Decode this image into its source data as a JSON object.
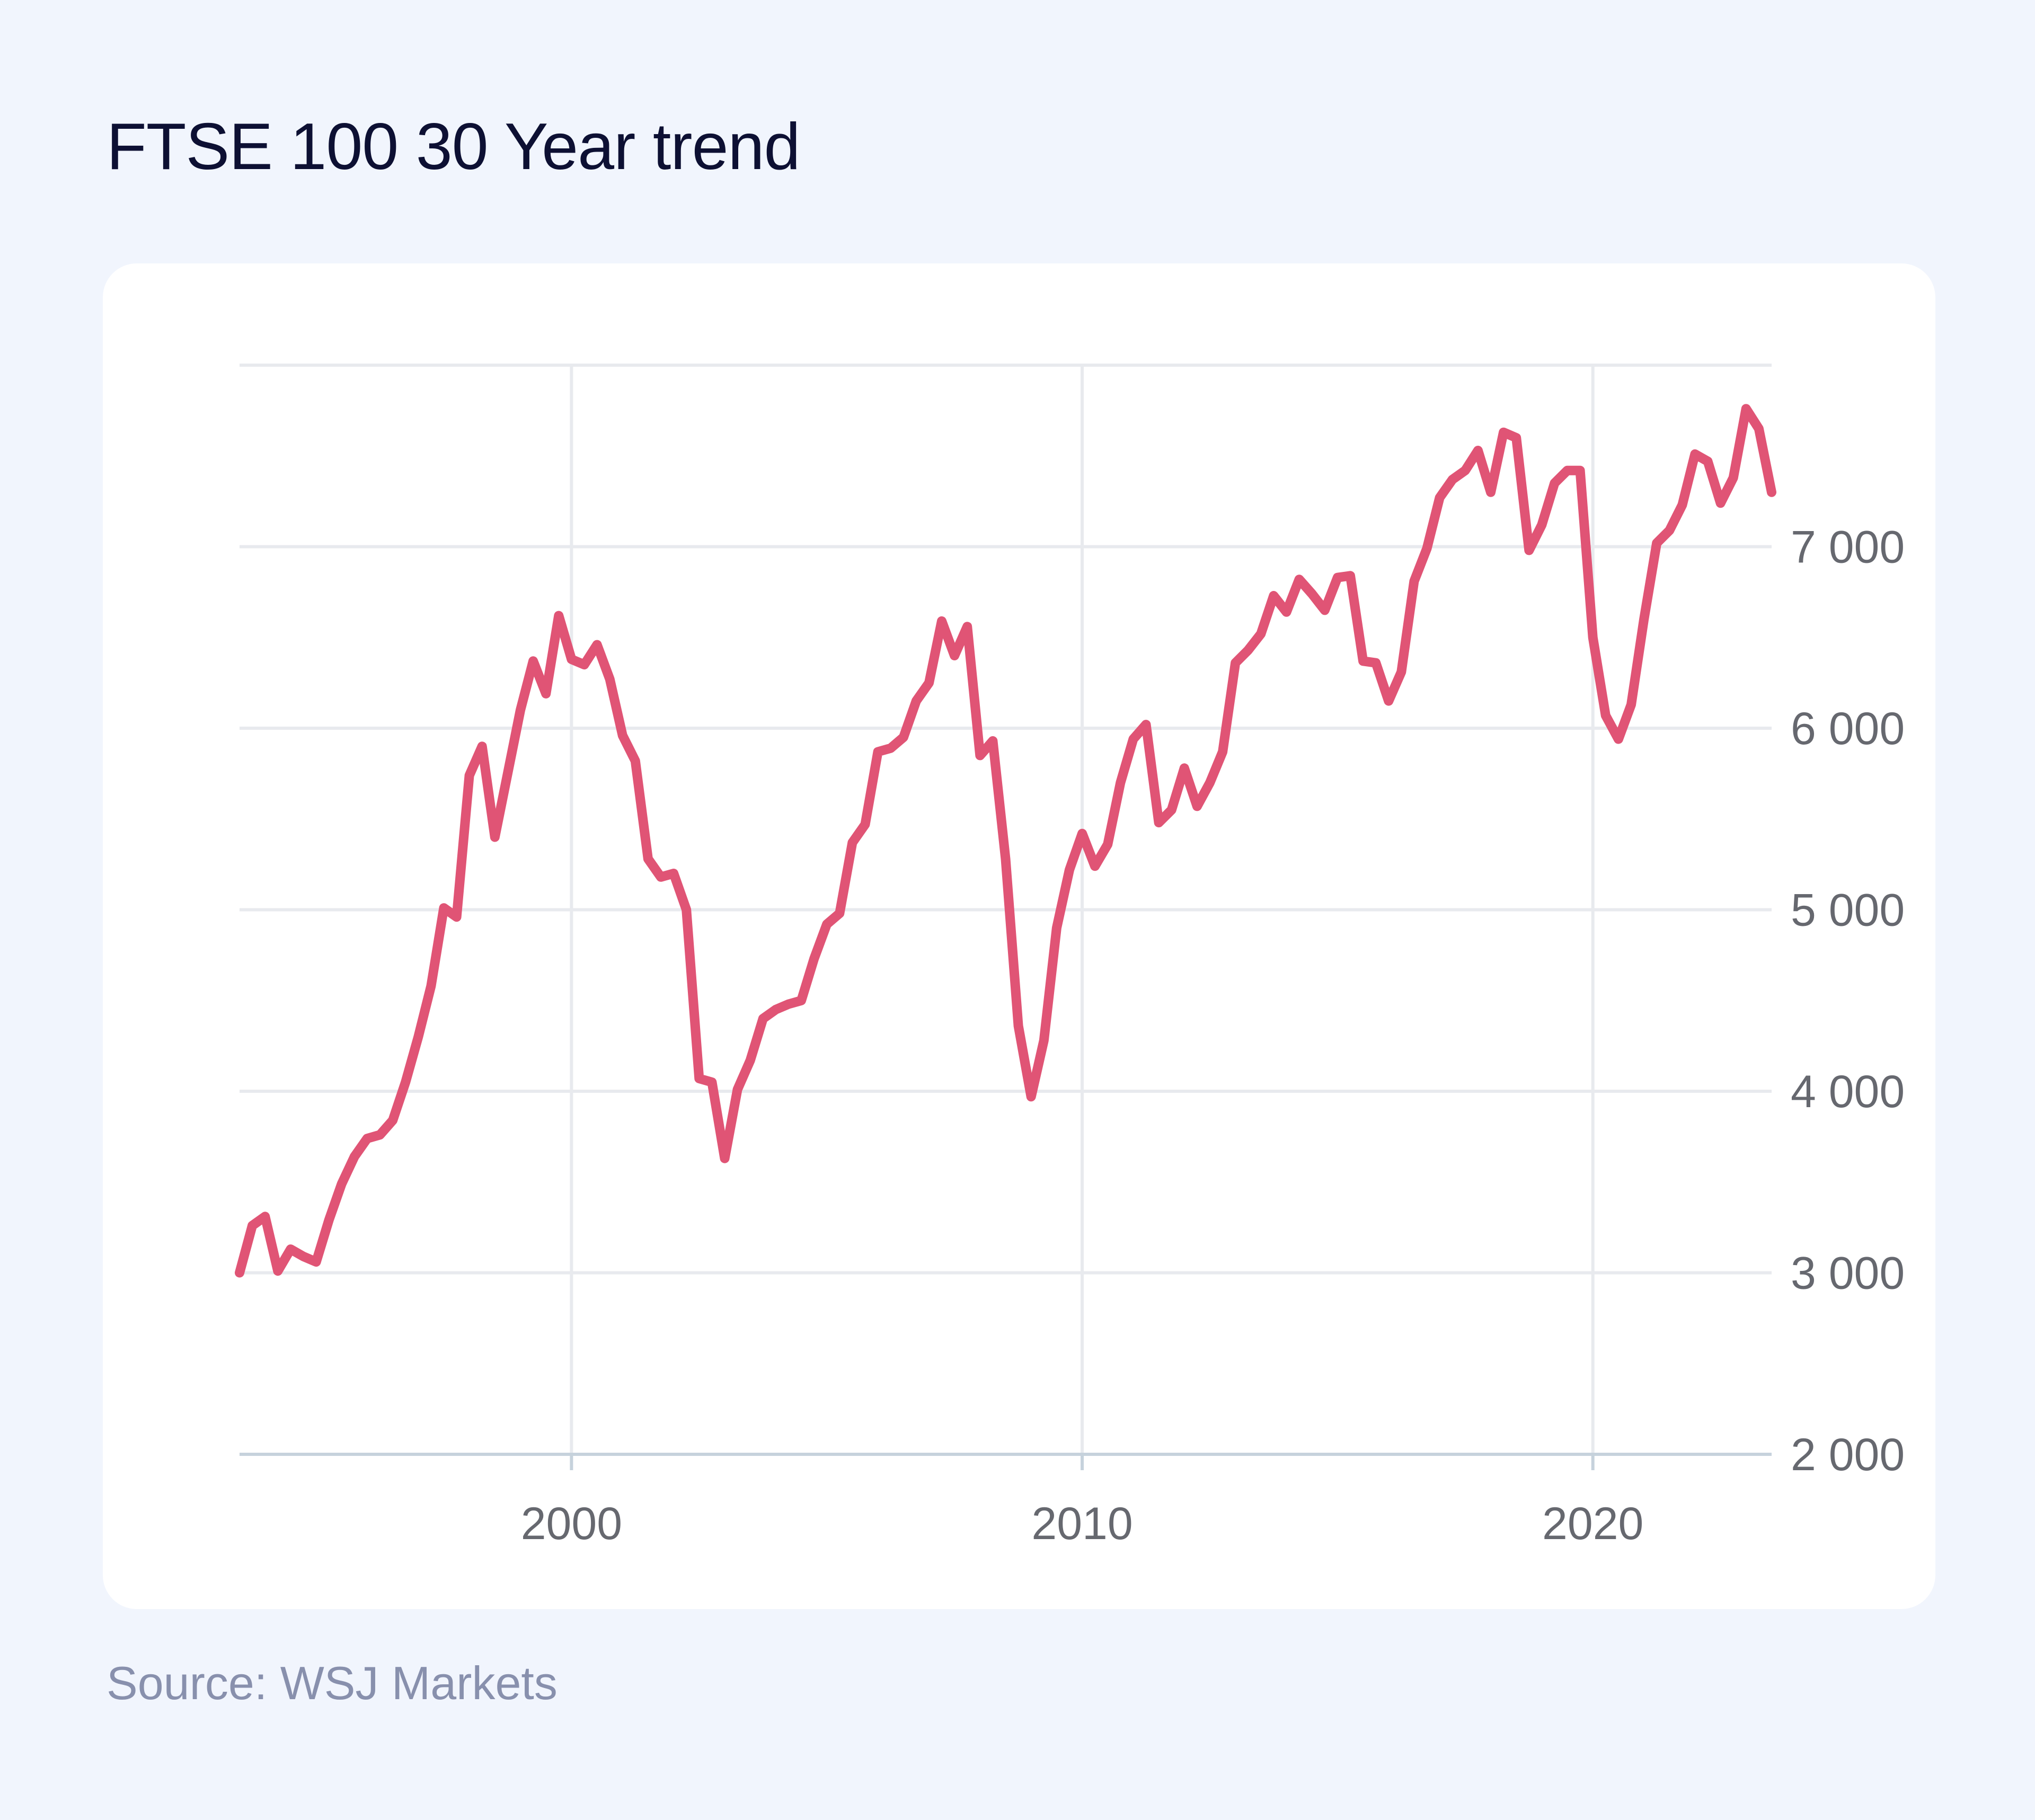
{
  "page": {
    "title": "FTSE 100 30 Year trend",
    "source": "Source: WSJ Markets"
  },
  "colors": {
    "background": "#f1f5fd",
    "card": "#ffffff",
    "line": "#e05475",
    "grid": "#e8eaee",
    "axis": "#c6d2dc"
  },
  "chart_data": {
    "type": "line",
    "title": "FTSE 100 30 Year trend",
    "xlabel": "",
    "ylabel": "",
    "xlim": [
      1993.5,
      2023.5
    ],
    "ylim": [
      2000,
      8000
    ],
    "x_ticks": [
      2000,
      2010,
      2020
    ],
    "x_tick_labels": [
      "2000",
      "2010",
      "2020"
    ],
    "y_ticks": [
      2000,
      3000,
      4000,
      5000,
      6000,
      7000
    ],
    "y_tick_labels": [
      "2 000",
      "3 000",
      "4 000",
      "5 000",
      "6 000",
      "7 000"
    ],
    "grid": true,
    "y_axis_position": "right",
    "series": [
      {
        "values": [
          [
            1993.5,
            3000
          ],
          [
            1993.75,
            3260
          ],
          [
            1994.0,
            3310
          ],
          [
            1994.25,
            3010
          ],
          [
            1994.5,
            3130
          ],
          [
            1994.75,
            3090
          ],
          [
            1995.0,
            3060
          ],
          [
            1995.25,
            3290
          ],
          [
            1995.5,
            3490
          ],
          [
            1995.75,
            3640
          ],
          [
            1996.0,
            3740
          ],
          [
            1996.25,
            3760
          ],
          [
            1996.5,
            3840
          ],
          [
            1996.75,
            4050
          ],
          [
            1997.0,
            4300
          ],
          [
            1997.25,
            4580
          ],
          [
            1997.5,
            5010
          ],
          [
            1997.75,
            4960
          ],
          [
            1998.0,
            5740
          ],
          [
            1998.25,
            5900
          ],
          [
            1998.5,
            5400
          ],
          [
            1998.75,
            5750
          ],
          [
            1999.0,
            6100
          ],
          [
            1999.25,
            6370
          ],
          [
            1999.5,
            6190
          ],
          [
            1999.75,
            6620
          ],
          [
            2000.0,
            6380
          ],
          [
            2000.25,
            6350
          ],
          [
            2000.5,
            6460
          ],
          [
            2000.75,
            6270
          ],
          [
            2001.0,
            5960
          ],
          [
            2001.25,
            5820
          ],
          [
            2001.5,
            5280
          ],
          [
            2001.75,
            5180
          ],
          [
            2002.0,
            5200
          ],
          [
            2002.25,
            5000
          ],
          [
            2002.5,
            4070
          ],
          [
            2002.75,
            4050
          ],
          [
            2003.0,
            3630
          ],
          [
            2003.25,
            4010
          ],
          [
            2003.5,
            4170
          ],
          [
            2003.75,
            4400
          ],
          [
            2004.0,
            4450
          ],
          [
            2004.25,
            4480
          ],
          [
            2004.5,
            4500
          ],
          [
            2004.75,
            4730
          ],
          [
            2005.0,
            4920
          ],
          [
            2005.25,
            4980
          ],
          [
            2005.5,
            5370
          ],
          [
            2005.75,
            5470
          ],
          [
            2006.0,
            5870
          ],
          [
            2006.25,
            5890
          ],
          [
            2006.5,
            5950
          ],
          [
            2006.75,
            6150
          ],
          [
            2007.0,
            6250
          ],
          [
            2007.25,
            6590
          ],
          [
            2007.5,
            6400
          ],
          [
            2007.75,
            6560
          ],
          [
            2008.0,
            5850
          ],
          [
            2008.25,
            5930
          ],
          [
            2008.5,
            5280
          ],
          [
            2008.75,
            4360
          ],
          [
            2009.0,
            3970
          ],
          [
            2009.25,
            4280
          ],
          [
            2009.5,
            4900
          ],
          [
            2009.75,
            5220
          ],
          [
            2010.0,
            5420
          ],
          [
            2010.25,
            5240
          ],
          [
            2010.5,
            5360
          ],
          [
            2010.75,
            5700
          ],
          [
            2011.0,
            5940
          ],
          [
            2011.25,
            6020
          ],
          [
            2011.5,
            5480
          ],
          [
            2011.75,
            5550
          ],
          [
            2012.0,
            5780
          ],
          [
            2012.25,
            5570
          ],
          [
            2012.5,
            5700
          ],
          [
            2012.75,
            5870
          ],
          [
            2013.0,
            6360
          ],
          [
            2013.25,
            6430
          ],
          [
            2013.5,
            6520
          ],
          [
            2013.75,
            6730
          ],
          [
            2014.0,
            6640
          ],
          [
            2014.25,
            6820
          ],
          [
            2014.5,
            6740
          ],
          [
            2014.75,
            6650
          ],
          [
            2015.0,
            6830
          ],
          [
            2015.25,
            6840
          ],
          [
            2015.5,
            6370
          ],
          [
            2015.75,
            6360
          ],
          [
            2016.0,
            6150
          ],
          [
            2016.25,
            6310
          ],
          [
            2016.5,
            6810
          ],
          [
            2016.75,
            6990
          ],
          [
            2017.0,
            7270
          ],
          [
            2017.25,
            7370
          ],
          [
            2017.5,
            7420
          ],
          [
            2017.75,
            7530
          ],
          [
            2018.0,
            7300
          ],
          [
            2018.25,
            7630
          ],
          [
            2018.5,
            7600
          ],
          [
            2018.75,
            6980
          ],
          [
            2019.0,
            7120
          ],
          [
            2019.25,
            7350
          ],
          [
            2019.5,
            7420
          ],
          [
            2019.75,
            7420
          ],
          [
            2020.0,
            6500
          ],
          [
            2020.25,
            6070
          ],
          [
            2020.5,
            5940
          ],
          [
            2020.75,
            6130
          ],
          [
            2021.0,
            6600
          ],
          [
            2021.25,
            7020
          ],
          [
            2021.5,
            7090
          ],
          [
            2021.75,
            7230
          ],
          [
            2022.0,
            7510
          ],
          [
            2022.25,
            7470
          ],
          [
            2022.5,
            7240
          ],
          [
            2022.75,
            7380
          ],
          [
            2023.0,
            7760
          ],
          [
            2023.25,
            7650
          ],
          [
            2023.5,
            7300
          ]
        ]
      }
    ]
  }
}
